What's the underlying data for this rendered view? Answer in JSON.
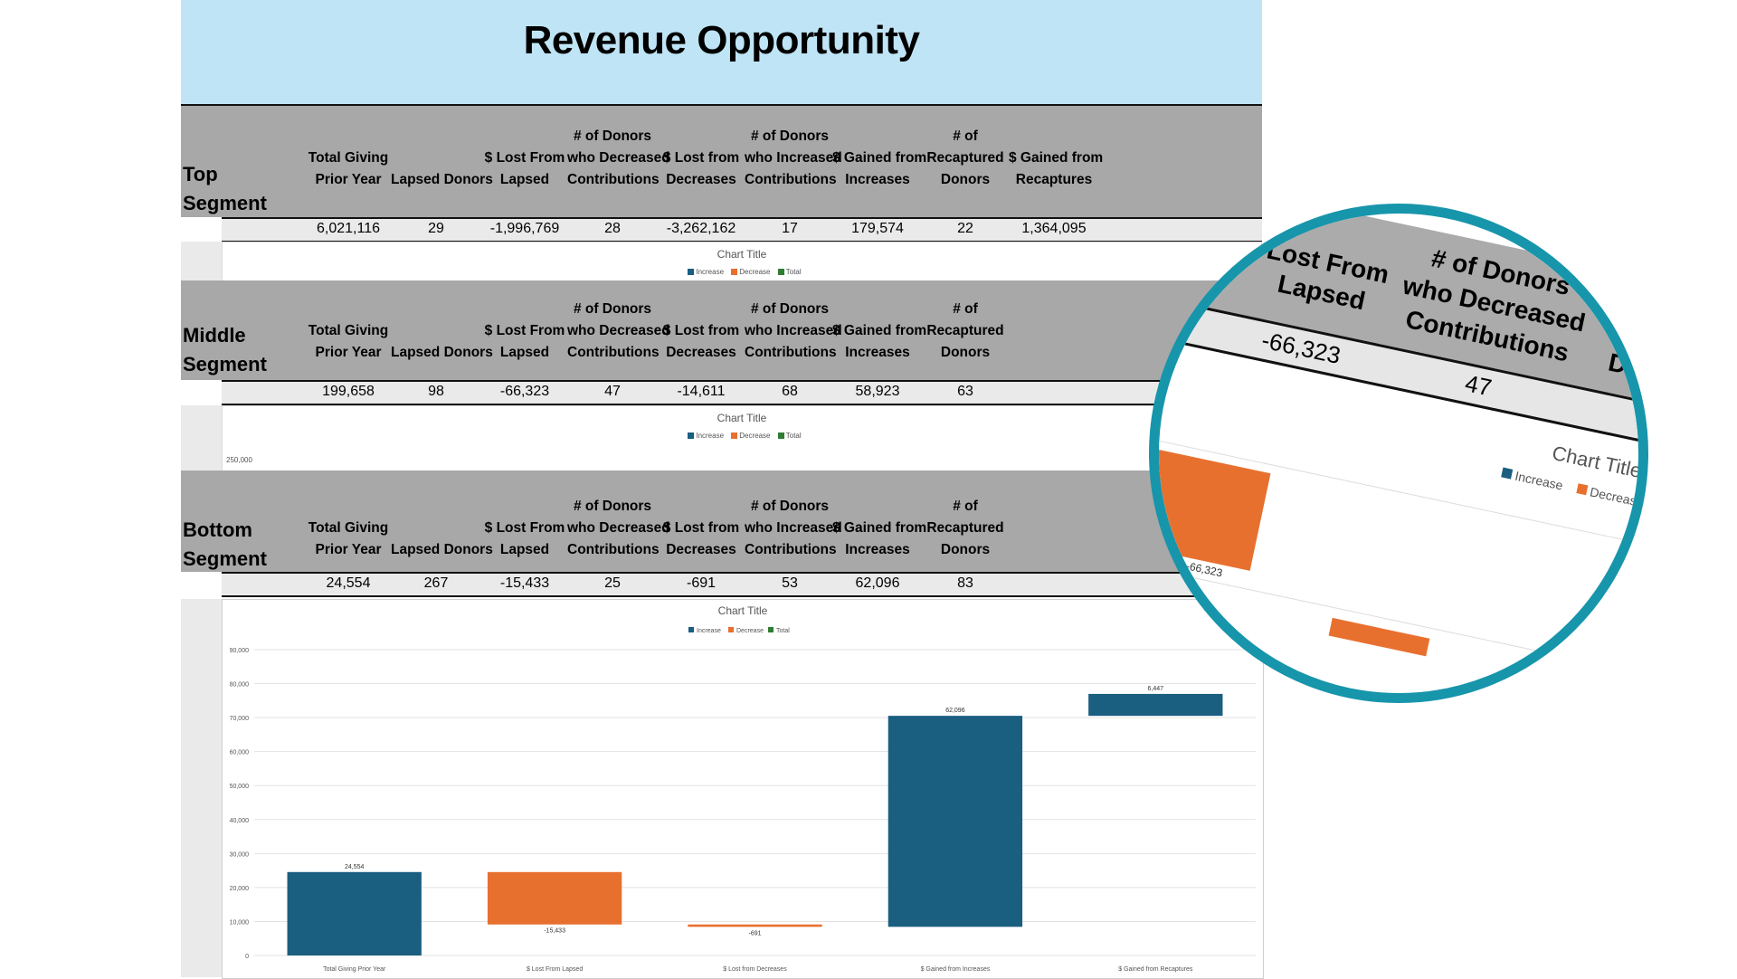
{
  "title": "Revenue Opportunity",
  "columns_full": [
    "Total Giving Prior Year",
    "Lapsed Donors",
    "$ Lost From Lapsed",
    "# of Donors who Decreased Contributions",
    "$ Lost from Decreases",
    "# of Donors who Increased Contributions",
    "$ Gained from Increases",
    "# of Recaptured Donors",
    "$ Gained from Recaptures"
  ],
  "header_lines": [
    [
      "",
      "Total Giving",
      "Prior Year"
    ],
    [
      "",
      "",
      "Lapsed Donors"
    ],
    [
      "",
      "$ Lost From",
      "Lapsed"
    ],
    [
      "# of Donors",
      "who Decreased",
      "Contributions"
    ],
    [
      "",
      "$ Lost from",
      "Decreases"
    ],
    [
      "# of Donors",
      "who Increased",
      "Contributions"
    ],
    [
      "",
      "$ Gained from",
      "Increases"
    ],
    [
      "# of",
      "Recaptured",
      "Donors"
    ],
    [
      "",
      "$ Gained from",
      "Recaptures"
    ]
  ],
  "segments": [
    {
      "label_1": "Top",
      "label_2": "Segment",
      "values": [
        "6,021,116",
        "29",
        "-1,996,769",
        "28",
        "-3,262,162",
        "17",
        "179,574",
        "22",
        "1,364,095"
      ]
    },
    {
      "label_1": "Middle",
      "label_2": "Segment",
      "values": [
        "199,658",
        "98",
        "-66,323",
        "47",
        "-14,611",
        "68",
        "58,923",
        "63",
        ""
      ]
    },
    {
      "label_1": "Bottom",
      "label_2": "Segment",
      "values": [
        "24,554",
        "267",
        "-15,433",
        "25",
        "-691",
        "53",
        "62,096",
        "83",
        ""
      ]
    }
  ],
  "middle_chart_ytick": "250,000",
  "chart_title": "Chart Title",
  "legend": [
    {
      "name": "Increase",
      "color": "#1a5e80"
    },
    {
      "name": "Decrease",
      "color": "#e8702f"
    },
    {
      "name": "Total",
      "color": "#2e7d32"
    }
  ],
  "chart_data": {
    "type": "bar",
    "subtype": "waterfall",
    "title": "Chart Title",
    "categories": [
      "Total Giving Prior Year",
      "$ Lost From Lapsed",
      "$ Lost from Decreases",
      "$ Gained from Increases",
      "$ Gained from Recaptures"
    ],
    "values": [
      24554,
      -15433,
      -691,
      62096,
      6447
    ],
    "value_labels": [
      "24,554",
      "-15,433",
      "-691",
      "62,096",
      "6,447"
    ],
    "kinds": [
      "Increase",
      "Decrease",
      "Decrease",
      "Increase",
      "Increase"
    ],
    "ylim": [
      0,
      90000
    ],
    "yticks": [
      0,
      10000,
      20000,
      30000,
      40000,
      50000,
      60000,
      70000,
      80000,
      90000
    ],
    "ytick_labels": [
      "0",
      "10,000",
      "20,000",
      "30,000",
      "40,000",
      "50,000",
      "60,000",
      "70,000",
      "80,000",
      "90,000"
    ],
    "legend_position": "top",
    "grid": true,
    "colors": {
      "Increase": "#1a5e80",
      "Decrease": "#e8702f",
      "Total": "#2e7d32"
    }
  },
  "zoom": {
    "headers": [
      [
        "Lost From",
        "Lapsed"
      ],
      [
        "# of Donors",
        "who Decreased",
        "Contributions"
      ],
      [
        "$ Lost fr",
        "Decrease"
      ]
    ],
    "values": [
      "-66,323",
      "47",
      "-14,611"
    ],
    "bar_label": "-66,323"
  }
}
